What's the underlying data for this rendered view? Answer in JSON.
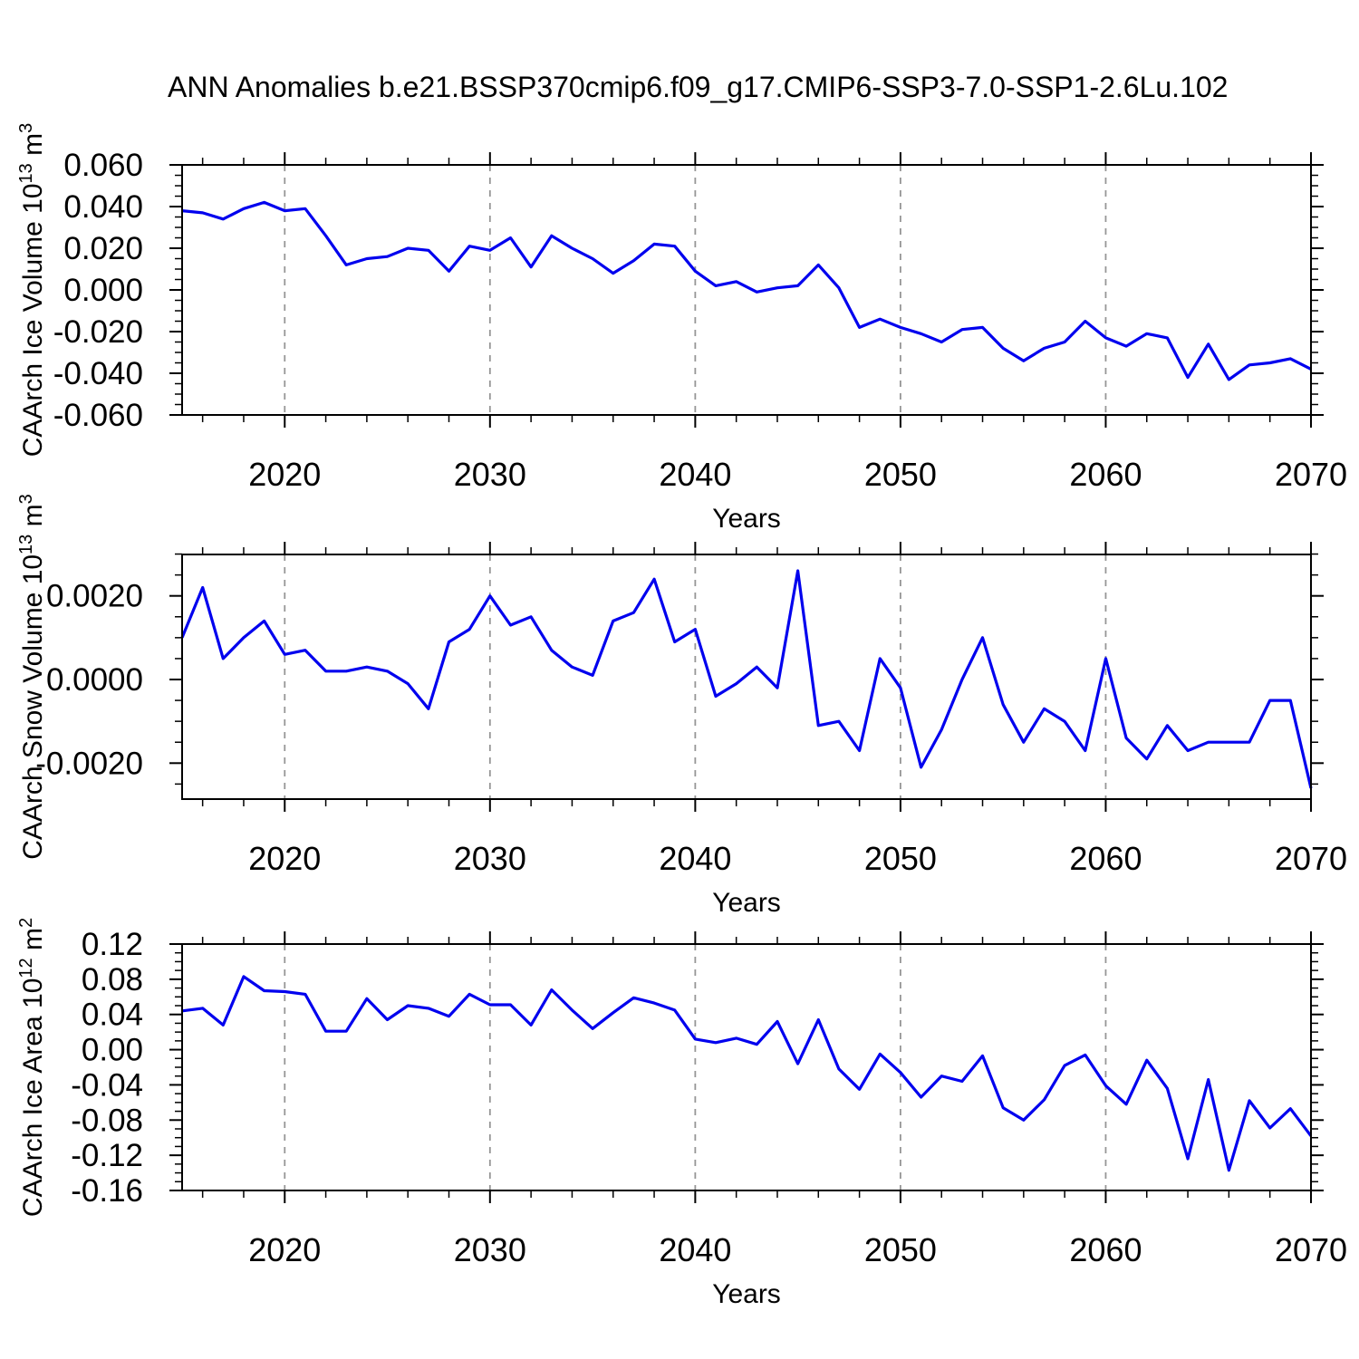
{
  "figure": {
    "title": "ANN Anomalies b.e21.BSSP370cmip6.f09_g17.CMIP6-SSP3-7.0-SSP1-2.6Lu.102",
    "background": "#ffffff",
    "line_color": "#0000EE",
    "axis_color": "#000000",
    "grid_color": "#969696"
  },
  "chart_data": [
    {
      "type": "line",
      "name": "ice-volume",
      "series_name": "CAArch Ice Volume anomaly",
      "xlabel": "Years",
      "ylabel": "CAArch Ice Volume 10^13 m^3",
      "x_start": 2015,
      "x_step": 1,
      "xlim": [
        2015,
        2070
      ],
      "ylim": [
        -0.06,
        0.06
      ],
      "xticks": {
        "values": [
          2020,
          2030,
          2040,
          2050,
          2060,
          2070
        ],
        "labels": [
          "2020",
          "2030",
          "2040",
          "2050",
          "2060",
          "2070"
        ]
      },
      "yticks": {
        "values": [
          0.06,
          0.04,
          0.02,
          0.0,
          -0.02,
          -0.04,
          -0.06
        ],
        "labels": [
          "0.060",
          "0.040",
          "0.020",
          "0.000",
          "-0.020",
          "-0.040",
          "-0.060"
        ]
      },
      "xminor_step": 2,
      "yminor_step": 0.005,
      "grid_x": [
        2020,
        2030,
        2040,
        2050,
        2060
      ],
      "grid_style": "vertical-dashed",
      "values": [
        0.038,
        0.037,
        0.034,
        0.039,
        0.042,
        0.038,
        0.039,
        0.026,
        0.012,
        0.015,
        0.016,
        0.02,
        0.019,
        0.009,
        0.021,
        0.019,
        0.025,
        0.011,
        0.026,
        0.02,
        0.015,
        0.008,
        0.014,
        0.022,
        0.021,
        0.009,
        0.002,
        0.004,
        -0.001,
        0.001,
        0.002,
        0.012,
        0.001,
        -0.018,
        -0.014,
        -0.018,
        -0.021,
        -0.025,
        -0.019,
        -0.018,
        -0.028,
        -0.034,
        -0.028,
        -0.025,
        -0.015,
        -0.023,
        -0.027,
        -0.021,
        -0.023,
        -0.042,
        -0.026,
        -0.043,
        -0.036,
        -0.035,
        -0.033,
        -0.038
      ]
    },
    {
      "type": "line",
      "name": "snow-volume",
      "series_name": "CAArch Snow Volume anomaly",
      "xlabel": "Years",
      "ylabel": "CAArch Snow Volume 10^13 m^3",
      "x_start": 2015,
      "x_step": 1,
      "xlim": [
        2015,
        2070
      ],
      "ylim": [
        -0.00286,
        0.00299
      ],
      "xticks": {
        "values": [
          2020,
          2030,
          2040,
          2050,
          2060,
          2070
        ],
        "labels": [
          "2020",
          "2030",
          "2040",
          "2050",
          "2060",
          "2070"
        ]
      },
      "yticks": {
        "values": [
          0.002,
          0.0,
          -0.002
        ],
        "labels": [
          "0.0020",
          "0.0000",
          "-0.0020"
        ]
      },
      "xminor_step": 2,
      "yminor_step": 0.0005,
      "grid_x": [
        2020,
        2030,
        2040,
        2050,
        2060
      ],
      "grid_style": "vertical-dashed",
      "values": [
        0.001,
        0.0022,
        0.0005,
        0.001,
        0.0014,
        0.0006,
        0.0007,
        0.0002,
        0.0002,
        0.0003,
        0.0002,
        -0.0001,
        -0.0007,
        0.0009,
        0.0012,
        0.002,
        0.0013,
        0.0015,
        0.0007,
        0.0003,
        0.0001,
        0.0014,
        0.0016,
        0.0024,
        0.0009,
        0.0012,
        -0.0004,
        -0.0001,
        0.0003,
        -0.0002,
        0.0026,
        -0.0011,
        -0.001,
        -0.0017,
        0.0005,
        -0.0002,
        -0.0021,
        -0.0012,
        0.0,
        0.001,
        -0.0006,
        -0.0015,
        -0.0007,
        -0.001,
        -0.0017,
        0.0005,
        -0.0014,
        -0.0019,
        -0.0011,
        -0.0017,
        -0.0015,
        -0.0015,
        -0.0015,
        -0.0005,
        -0.0005,
        -0.0026
      ]
    },
    {
      "type": "line",
      "name": "ice-area",
      "series_name": "CAArch Ice Area anomaly",
      "xlabel": "Years",
      "ylabel": "CAArch Ice Area 10^12 m^2",
      "x_start": 2015,
      "x_step": 1,
      "xlim": [
        2015,
        2070
      ],
      "ylim": [
        -0.16,
        0.12
      ],
      "xticks": {
        "values": [
          2020,
          2030,
          2040,
          2050,
          2060,
          2070
        ],
        "labels": [
          "2020",
          "2030",
          "2040",
          "2050",
          "2060",
          "2070"
        ]
      },
      "yticks": {
        "values": [
          0.12,
          0.08,
          0.04,
          0.0,
          -0.04,
          -0.08,
          -0.12,
          -0.16
        ],
        "labels": [
          "0.12",
          "0.08",
          "0.04",
          "0.00",
          "-0.04",
          "-0.08",
          "-0.12",
          "-0.16"
        ]
      },
      "xminor_step": 2,
      "yminor_step": 0.01,
      "grid_x": [
        2020,
        2030,
        2040,
        2050,
        2060
      ],
      "grid_style": "vertical-dashed",
      "values": [
        0.044,
        0.047,
        0.028,
        0.083,
        0.067,
        0.066,
        0.063,
        0.021,
        0.021,
        0.058,
        0.034,
        0.05,
        0.047,
        0.038,
        0.063,
        0.051,
        0.051,
        0.028,
        0.068,
        0.045,
        0.024,
        0.042,
        0.059,
        0.053,
        0.045,
        0.012,
        0.008,
        0.013,
        0.006,
        0.032,
        -0.016,
        0.034,
        -0.022,
        -0.045,
        -0.005,
        -0.026,
        -0.054,
        -0.03,
        -0.036,
        -0.007,
        -0.066,
        -0.08,
        -0.057,
        -0.018,
        -0.006,
        -0.041,
        -0.062,
        -0.012,
        -0.044,
        -0.124,
        -0.034,
        -0.137,
        -0.058,
        -0.089,
        -0.067,
        -0.098
      ]
    }
  ]
}
